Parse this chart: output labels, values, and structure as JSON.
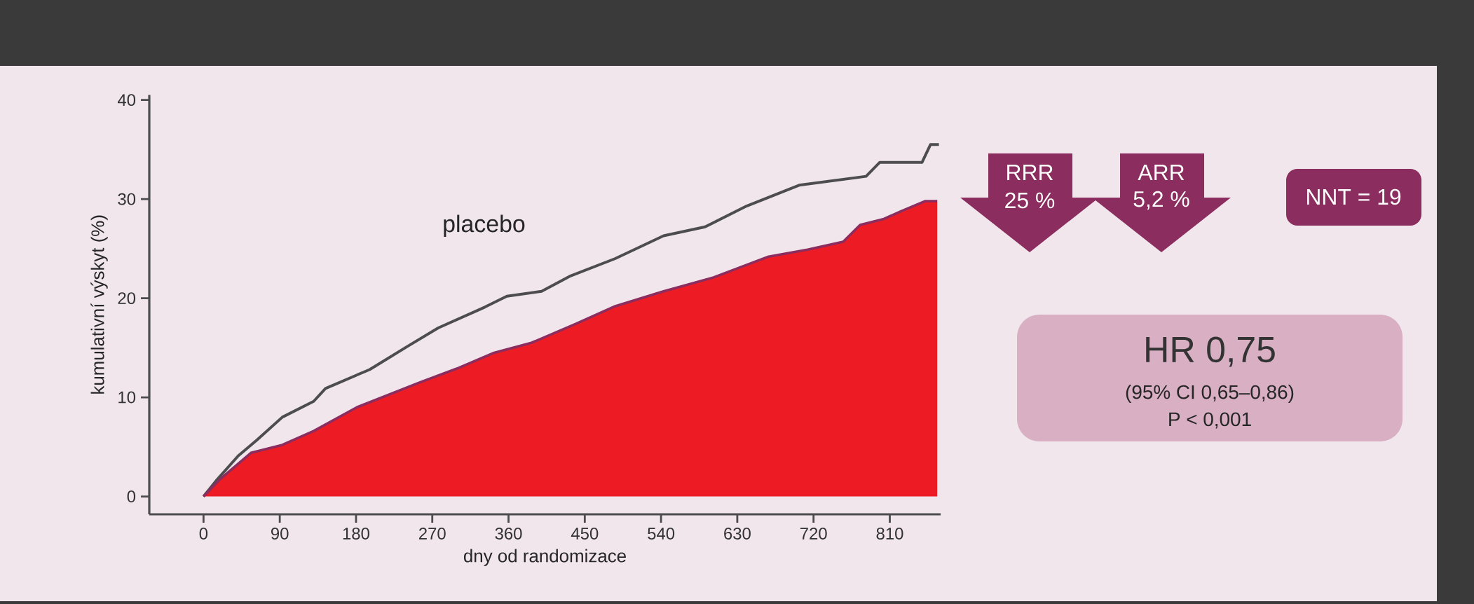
{
  "chart_data": {
    "type": "line",
    "xlabel": "dny od randomizace",
    "ylabel": "kumulativní výskyt (%)",
    "xlim": [
      -64,
      870
    ],
    "ylim": [
      -1.8,
      40.5
    ],
    "xticks": [
      0,
      90,
      180,
      270,
      360,
      450,
      540,
      630,
      720,
      810
    ],
    "yticks": [
      0,
      10,
      20,
      30,
      40
    ],
    "grid": false,
    "marker": "none",
    "series": [
      {
        "name": "placebo",
        "color": "#4d4d4f",
        "x": [
          0,
          15,
          41,
          63,
          93,
          130,
          144,
          196,
          240,
          277,
          332,
          358,
          399,
          432,
          486,
          543,
          592,
          641,
          703,
          782,
          798,
          848,
          858,
          868
        ],
        "values": [
          0,
          1.6,
          4.1,
          5.7,
          8.0,
          9.6,
          10.9,
          12.8,
          15.1,
          17.0,
          19.1,
          20.2,
          20.7,
          22.2,
          24.0,
          26.3,
          27.2,
          29.3,
          31.4,
          32.3,
          33.7,
          33.7,
          35.5,
          35.5
        ]
      },
      {
        "type": "area",
        "color": "#ed1c24",
        "x": [
          0,
          19,
          56,
          93,
          130,
          181,
          255,
          299,
          343,
          387,
          439,
          486,
          543,
          602,
          667,
          713,
          755,
          775,
          803,
          824,
          852,
          866
        ],
        "values": [
          0,
          1.7,
          4.4,
          5.2,
          6.6,
          9.0,
          11.5,
          12.9,
          14.5,
          15.5,
          17.4,
          19.2,
          20.7,
          22.1,
          24.2,
          24.9,
          25.7,
          27.4,
          28.0,
          28.8,
          29.8,
          29.8
        ]
      }
    ],
    "annotations": [
      "RRR",
      "25 %",
      "ARR",
      "5,2 %",
      "NNT = 19",
      "HR 0,75",
      "(95% CI 0,65–0,86)",
      "P < 0,001"
    ]
  }
}
